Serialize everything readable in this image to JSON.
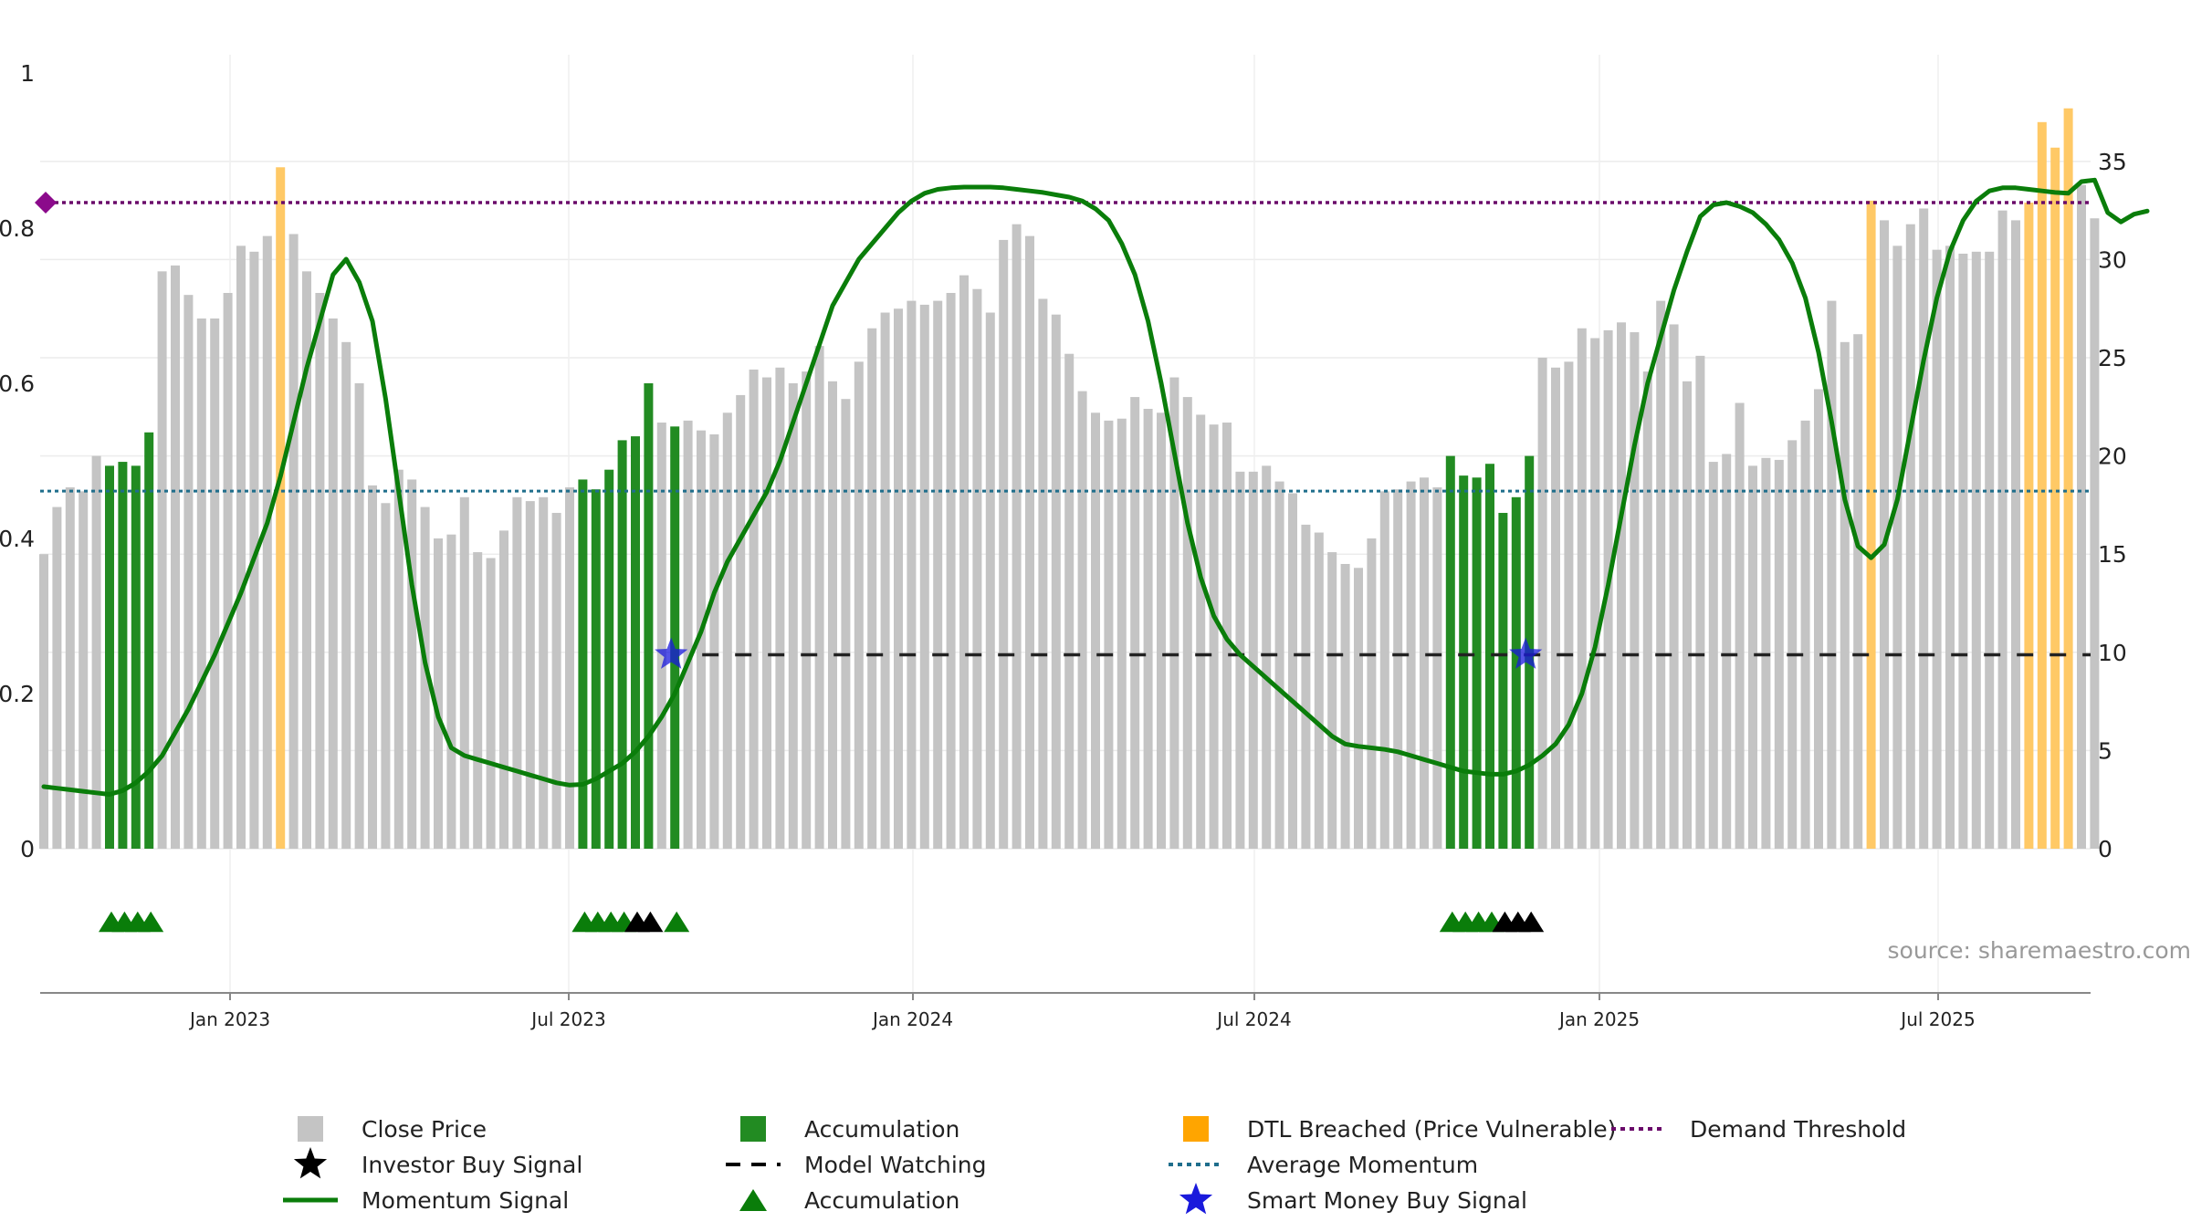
{
  "chart_data": {
    "type": "bar",
    "source": "source: sharemaestro.com",
    "x_ticks": [
      "Jan 2023",
      "Jul 2023",
      "Jan 2024",
      "Jul 2024",
      "Jan 2025",
      "Jul 2025"
    ],
    "y_left_ticks": [
      "0",
      "0.2",
      "0.4",
      "0.6",
      "0.8",
      "1"
    ],
    "y_left_range": [
      0,
      1
    ],
    "y_right_ticks": [
      "0",
      "5",
      "10",
      "15",
      "20",
      "25",
      "30",
      "35"
    ],
    "y_right_range": [
      0,
      39.5
    ],
    "grid": true,
    "legend_position": "bottom",
    "colors": {
      "close": "#c4c4c4",
      "accumulation": "#228b22",
      "dtl_breached": "#ffc966",
      "momentum": "#0a7d0a",
      "average_momentum": "#1f6e8c",
      "demand_threshold": "#6a0a6a",
      "smart_money": "#1a1adc",
      "investor": "#000000",
      "model_watching": "#222222",
      "triangle_accumulation": "#0a7d0a"
    },
    "close_price": [
      15.0,
      17.4,
      18.4,
      18.2,
      20.0,
      19.5,
      19.7,
      19.5,
      21.2,
      29.4,
      29.7,
      28.2,
      27.0,
      27.0,
      28.3,
      30.7,
      30.4,
      31.2,
      34.7,
      31.3,
      29.4,
      28.3,
      27.0,
      25.8,
      23.7,
      18.5,
      17.6,
      19.3,
      18.8,
      17.4,
      15.8,
      16.0,
      17.9,
      15.1,
      14.8,
      16.2,
      17.9,
      17.7,
      17.9,
      17.1,
      18.4,
      18.8,
      18.3,
      19.3,
      20.8,
      21.0,
      23.7,
      21.7,
      21.5,
      21.8,
      21.3,
      21.1,
      22.2,
      23.1,
      24.4,
      24.0,
      24.5,
      23.7,
      24.3,
      25.6,
      23.8,
      22.9,
      24.8,
      26.5,
      27.3,
      27.5,
      27.9,
      27.7,
      27.9,
      28.3,
      29.2,
      28.5,
      27.3,
      31.0,
      31.8,
      31.2,
      28.0,
      27.2,
      25.2,
      23.3,
      22.2,
      21.8,
      21.9,
      23.0,
      22.4,
      22.2,
      24.0,
      23.0,
      22.1,
      21.6,
      21.7,
      19.2,
      19.2,
      19.5,
      18.7,
      18.1,
      16.5,
      16.1,
      15.1,
      14.5,
      14.3,
      15.8,
      18.2,
      18.3,
      18.7,
      18.9,
      18.4,
      20.0,
      19.0,
      18.9,
      19.6,
      17.1,
      17.9,
      20.0,
      25.0,
      24.5,
      24.8,
      26.5,
      26.0,
      26.4,
      26.8,
      26.3,
      24.3,
      27.9,
      26.7,
      23.8,
      25.1,
      19.7,
      20.1,
      22.7,
      19.5,
      19.9,
      19.8,
      20.8,
      21.8,
      23.4,
      27.9,
      25.8,
      26.2,
      33.0,
      32.0,
      30.7,
      31.8,
      32.6,
      30.5,
      30.7,
      30.3,
      30.4,
      30.4,
      32.5,
      32.0,
      32.9,
      37.0,
      35.7,
      37.7,
      33.8,
      32.1
    ],
    "accumulation_bars": [
      5,
      6,
      7,
      8,
      41,
      42,
      43,
      44,
      45,
      46,
      48,
      107,
      108,
      109,
      110,
      111,
      112,
      113
    ],
    "dtl_breached_bars": [
      18,
      139,
      151,
      152,
      153,
      154
    ],
    "momentum_signal_left_axis": [
      0.08,
      0.078,
      0.076,
      0.074,
      0.072,
      0.07,
      0.075,
      0.085,
      0.1,
      0.12,
      0.15,
      0.18,
      0.215,
      0.25,
      0.29,
      0.33,
      0.375,
      0.42,
      0.48,
      0.55,
      0.62,
      0.68,
      0.74,
      0.76,
      0.73,
      0.68,
      0.58,
      0.46,
      0.34,
      0.24,
      0.17,
      0.13,
      0.12,
      0.115,
      0.11,
      0.105,
      0.1,
      0.095,
      0.09,
      0.085,
      0.082,
      0.083,
      0.09,
      0.1,
      0.11,
      0.125,
      0.145,
      0.17,
      0.2,
      0.24,
      0.28,
      0.33,
      0.37,
      0.4,
      0.43,
      0.46,
      0.5,
      0.55,
      0.6,
      0.65,
      0.7,
      0.73,
      0.76,
      0.78,
      0.8,
      0.82,
      0.835,
      0.845,
      0.85,
      0.852,
      0.853,
      0.853,
      0.853,
      0.852,
      0.85,
      0.848,
      0.846,
      0.843,
      0.84,
      0.835,
      0.825,
      0.81,
      0.78,
      0.74,
      0.68,
      0.6,
      0.51,
      0.42,
      0.35,
      0.3,
      0.27,
      0.25,
      0.235,
      0.22,
      0.205,
      0.19,
      0.175,
      0.16,
      0.145,
      0.135,
      0.132,
      0.13,
      0.128,
      0.125,
      0.12,
      0.115,
      0.11,
      0.105,
      0.1,
      0.098,
      0.096,
      0.096,
      0.1,
      0.108,
      0.12,
      0.135,
      0.16,
      0.2,
      0.26,
      0.34,
      0.43,
      0.52,
      0.6,
      0.66,
      0.72,
      0.77,
      0.815,
      0.83,
      0.833,
      0.828,
      0.82,
      0.805,
      0.785,
      0.755,
      0.71,
      0.64,
      0.55,
      0.45,
      0.39,
      0.375,
      0.392,
      0.45,
      0.54,
      0.63,
      0.71,
      0.77,
      0.81,
      0.835,
      0.848,
      0.852,
      0.852,
      0.85,
      0.848,
      0.846,
      0.845,
      0.86,
      0.862,
      0.82,
      0.808,
      0.818,
      0.822
    ],
    "average_momentum": 0.461,
    "demand_threshold": 0.833,
    "model_watching_level": 0.25,
    "model_watching_ranges": [
      [
        48,
        155
      ],
      [
        113,
        155
      ]
    ],
    "smart_money_buy_signals": [
      48,
      113
    ],
    "triangle_markers": {
      "accumulation": [
        5,
        6,
        7,
        8,
        41,
        42,
        43,
        44,
        48,
        107,
        108,
        109,
        110
      ],
      "investor": [
        45,
        46,
        111,
        112,
        113
      ]
    },
    "legend": [
      {
        "label": "Close Price",
        "marker": "square",
        "color": "#c4c4c4"
      },
      {
        "label": "Investor Buy Signal",
        "marker": "star",
        "color": "#000000"
      },
      {
        "label": "Momentum Signal",
        "marker": "line",
        "color": "#0a7d0a"
      },
      {
        "label": "Accumulation",
        "marker": "square",
        "color": "#228b22"
      },
      {
        "label": "Model Watching",
        "marker": "dash",
        "color": "#000000"
      },
      {
        "label": "Accumulation",
        "marker": "triangle",
        "color": "#0a7d0a"
      },
      {
        "label": "DTL Breached (Price Vulnerable)",
        "marker": "square",
        "color": "#ffa500"
      },
      {
        "label": "Average Momentum",
        "marker": "dotted",
        "color": "#1f6e8c"
      },
      {
        "label": "Smart Money Buy Signal",
        "marker": "star",
        "color": "#1a1adc"
      },
      {
        "label": "Demand Threshold",
        "marker": "dotted",
        "color": "#6a0a6a"
      }
    ]
  }
}
